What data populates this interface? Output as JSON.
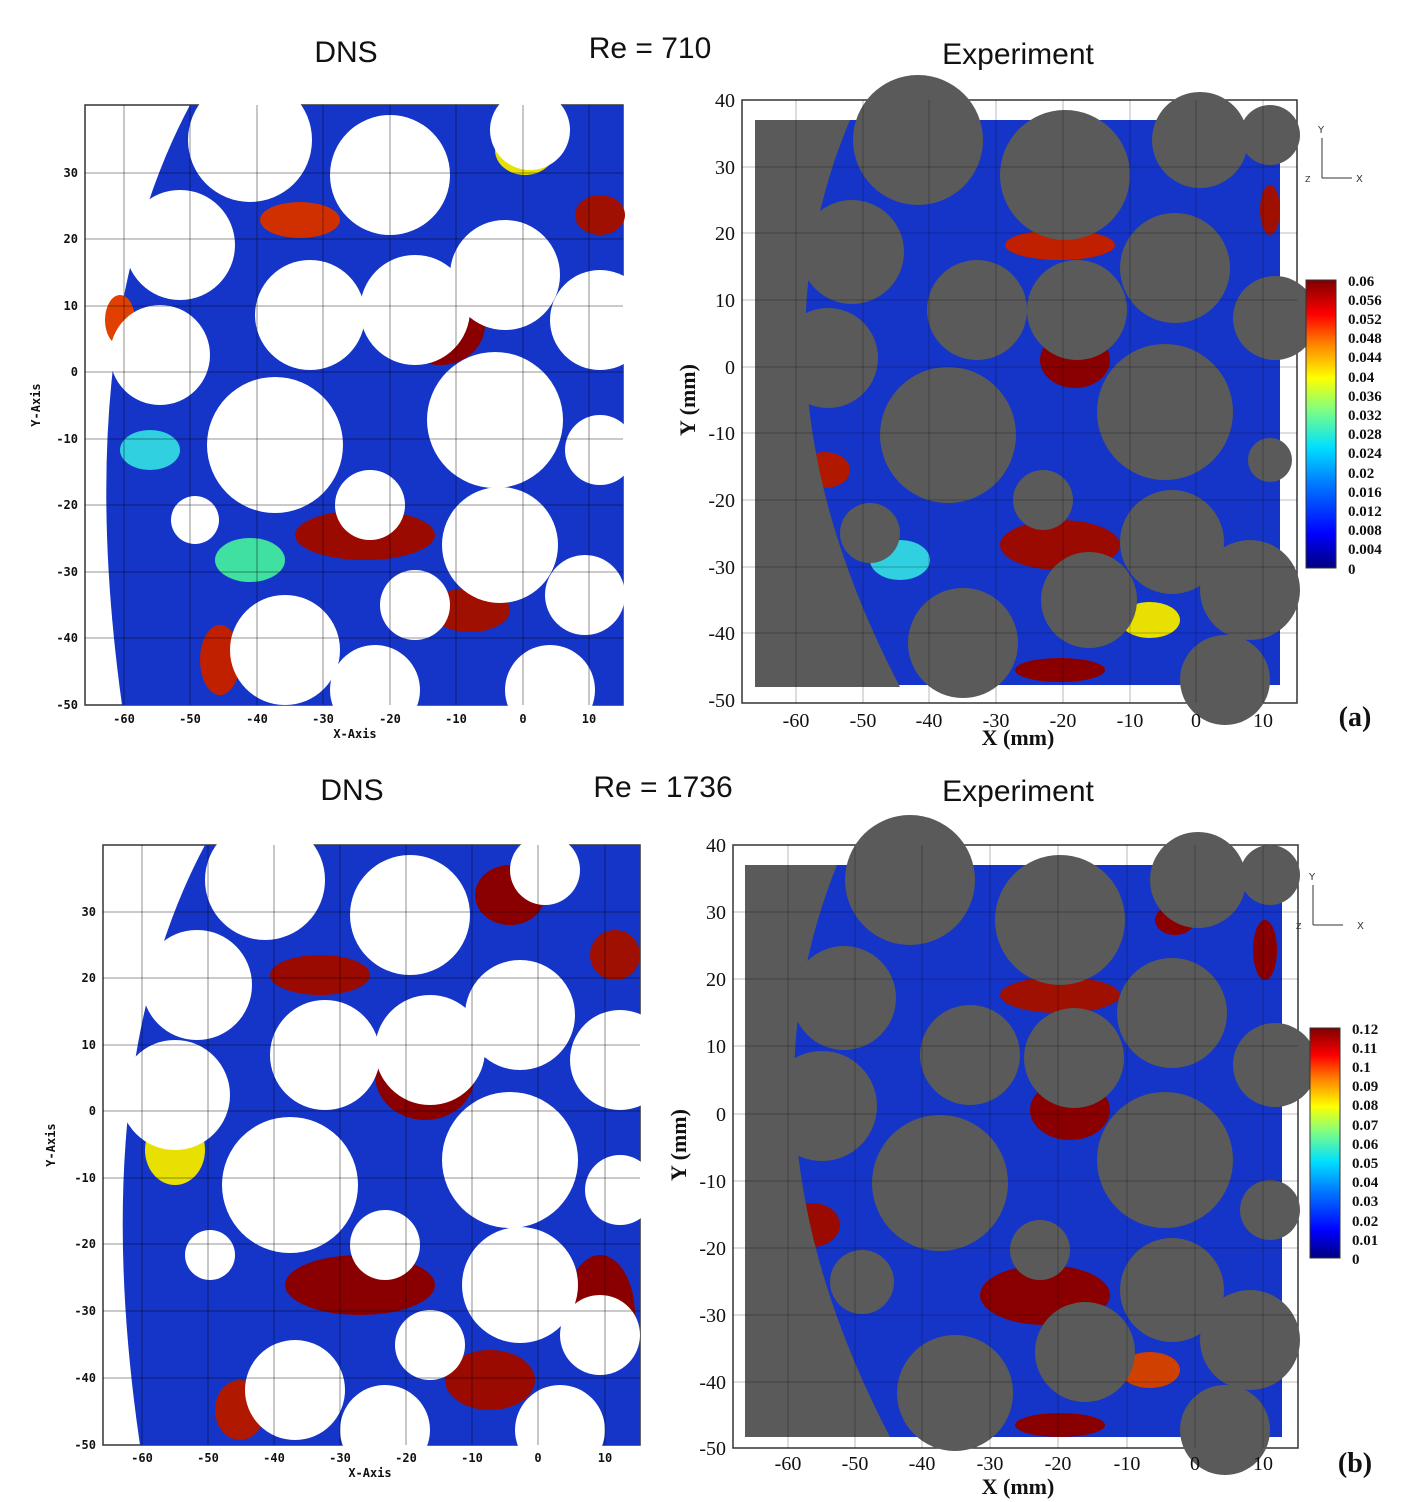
{
  "labels": {
    "dns": "DNS",
    "experiment": "Experiment"
  },
  "panels": [
    {
      "id": "a",
      "re_label": "Re = 710",
      "panel_label": "(a)",
      "colorbar_ticks": [
        "0.06",
        "0.056",
        "0.052",
        "0.048",
        "0.044",
        "0.04",
        "0.036",
        "0.032",
        "0.028",
        "0.024",
        "0.02",
        "0.016",
        "0.012",
        "0.008",
        "0.004",
        "0"
      ]
    },
    {
      "id": "b",
      "re_label": "Re = 1736",
      "panel_label": "(b)",
      "colorbar_ticks": [
        "0.12",
        "0.11",
        "0.1",
        "0.09",
        "0.08",
        "0.07",
        "0.06",
        "0.05",
        "0.04",
        "0.03",
        "0.02",
        "0.01",
        "0"
      ]
    }
  ],
  "dns_axes": {
    "xlabel": "X-Axis",
    "ylabel": "Y-Axis",
    "x_ticks": [
      "-60",
      "-50",
      "-40",
      "-30",
      "-20",
      "-10",
      "0",
      "10"
    ],
    "y_ticks": [
      "30",
      "20",
      "10",
      "0",
      "-10",
      "-20",
      "-30",
      "-40",
      "-50"
    ]
  },
  "exp_axes": {
    "xlabel": "X (mm)",
    "ylabel": "Y (mm)",
    "x_ticks": [
      "-60",
      "-50",
      "-40",
      "-30",
      "-20",
      "-10",
      "0",
      "10"
    ],
    "y_ticks": [
      "40",
      "30",
      "20",
      "10",
      "0",
      "-10",
      "-20",
      "-30",
      "-40",
      "-50"
    ]
  },
  "triad": {
    "y": "Y",
    "x": "X",
    "z": "Z"
  },
  "colors": {
    "obstacle_fill": "#5a5a5a",
    "field_base": "#1535c8",
    "colormap": [
      "#00007f",
      "#0000ff",
      "#0080ff",
      "#00e0ff",
      "#80ff80",
      "#ffff00",
      "#ff8000",
      "#ff0000",
      "#7f0000"
    ]
  }
}
